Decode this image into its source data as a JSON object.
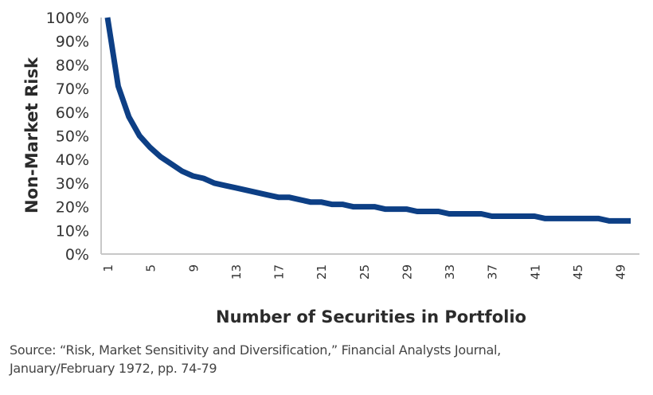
{
  "chart_data": {
    "type": "line",
    "title": "",
    "xlabel": "Number of Securities in Portfolio",
    "ylabel": "Non-Market Risk",
    "ylim": [
      0,
      100
    ],
    "xlim": [
      1,
      50
    ],
    "grid": false,
    "legend": null,
    "y_ticks": [
      "0%",
      "10%",
      "20%",
      "30%",
      "40%",
      "50%",
      "60%",
      "70%",
      "80%",
      "90%",
      "100%"
    ],
    "x_ticks": [
      "1",
      "5",
      "9",
      "13",
      "17",
      "21",
      "25",
      "29",
      "33",
      "37",
      "41",
      "45",
      "49"
    ],
    "line_color": "#0d3f85",
    "series": [
      {
        "name": "Non-Market Risk",
        "x": [
          1,
          2,
          3,
          4,
          5,
          6,
          7,
          8,
          9,
          10,
          11,
          12,
          13,
          14,
          15,
          16,
          17,
          18,
          19,
          20,
          21,
          22,
          23,
          24,
          25,
          26,
          27,
          28,
          29,
          30,
          31,
          32,
          33,
          34,
          35,
          36,
          37,
          38,
          39,
          40,
          41,
          42,
          43,
          44,
          45,
          46,
          47,
          48,
          49,
          50
        ],
        "values": [
          100,
          71,
          58,
          50,
          45,
          41,
          38,
          35,
          33,
          32,
          30,
          29,
          28,
          27,
          26,
          25,
          24,
          24,
          23,
          22,
          22,
          21,
          21,
          20,
          20,
          20,
          19,
          19,
          19,
          18,
          18,
          18,
          17,
          17,
          17,
          17,
          16,
          16,
          16,
          16,
          16,
          15,
          15,
          15,
          15,
          15,
          15,
          14,
          14,
          14
        ]
      }
    ],
    "source_lines": [
      "Source: “Risk, Market Sensitivity and Diversification,” Financial Analysts Journal,",
      "January/February 1972, pp. 74-79"
    ]
  }
}
